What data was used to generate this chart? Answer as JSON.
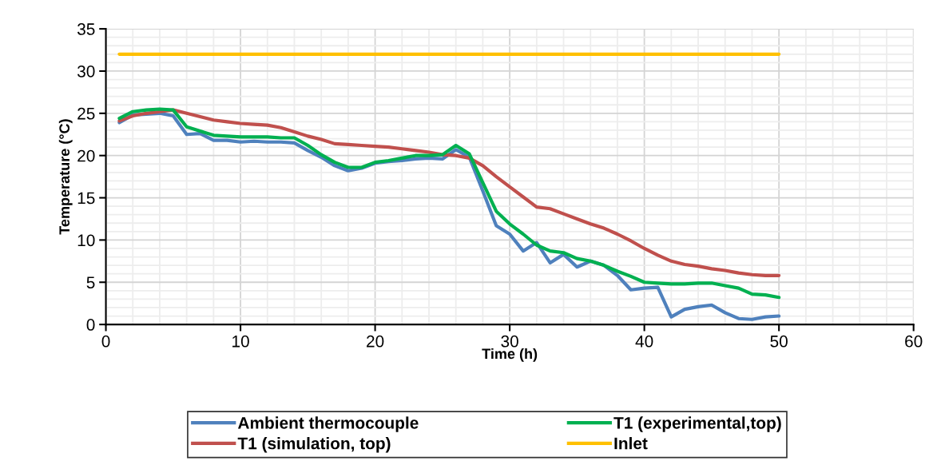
{
  "chart_data": {
    "type": "line",
    "xlabel": "Time (h)",
    "ylabel": "Temperature (°C)",
    "x": [
      1,
      2,
      3,
      4,
      5,
      6,
      7,
      8,
      9,
      10,
      11,
      12,
      13,
      14,
      15,
      16,
      17,
      18,
      19,
      20,
      21,
      22,
      23,
      24,
      25,
      26,
      27,
      28,
      29,
      30,
      31,
      32,
      33,
      34,
      35,
      36,
      37,
      38,
      39,
      40,
      41,
      42,
      43,
      44,
      45,
      46,
      47,
      48,
      49,
      50
    ],
    "series": [
      {
        "name": "Ambient thermocouple",
        "color": "#4f81bd",
        "values": [
          23.9,
          24.8,
          24.9,
          25.0,
          24.7,
          22.5,
          22.6,
          21.8,
          21.8,
          21.6,
          21.7,
          21.6,
          21.6,
          21.5,
          20.6,
          19.8,
          18.8,
          18.2,
          18.5,
          19.1,
          19.3,
          19.4,
          19.6,
          19.7,
          19.6,
          20.7,
          19.8,
          15.8,
          11.7,
          10.7,
          8.7,
          9.7,
          7.3,
          8.3,
          6.8,
          7.5,
          7.0,
          5.8,
          4.1,
          4.3,
          4.4,
          0.9,
          1.8,
          2.1,
          2.3,
          1.4,
          0.7,
          0.6,
          0.9,
          1.0
        ]
      },
      {
        "name": "T1 (simulation, top)",
        "color": "#c0504d",
        "values": [
          24.1,
          24.7,
          25.0,
          25.2,
          25.4,
          25.0,
          24.6,
          24.2,
          24.0,
          23.8,
          23.7,
          23.6,
          23.3,
          22.8,
          22.3,
          21.9,
          21.4,
          21.3,
          21.2,
          21.1,
          21.0,
          20.8,
          20.6,
          20.4,
          20.1,
          20.0,
          19.7,
          18.8,
          17.5,
          16.3,
          15.1,
          13.9,
          13.7,
          13.1,
          12.5,
          11.9,
          11.4,
          10.7,
          9.9,
          9.0,
          8.2,
          7.5,
          7.1,
          6.9,
          6.6,
          6.4,
          6.1,
          5.9,
          5.8,
          5.8
        ]
      },
      {
        "name": "T1 (experimental,top)",
        "color": "#00b050",
        "values": [
          24.4,
          25.2,
          25.4,
          25.5,
          25.4,
          23.4,
          22.9,
          22.4,
          22.3,
          22.2,
          22.2,
          22.2,
          22.1,
          22.1,
          21.2,
          20.1,
          19.2,
          18.6,
          18.6,
          19.2,
          19.4,
          19.7,
          20.0,
          20.0,
          20.1,
          21.2,
          20.2,
          16.8,
          13.4,
          11.9,
          10.7,
          9.4,
          8.7,
          8.5,
          7.8,
          7.5,
          7.0,
          6.3,
          5.7,
          5.0,
          4.9,
          4.8,
          4.8,
          4.9,
          4.9,
          4.6,
          4.3,
          3.6,
          3.5,
          3.2
        ]
      },
      {
        "name": "Inlet",
        "color": "#ffc000",
        "values": [
          32,
          32,
          32,
          32,
          32,
          32,
          32,
          32,
          32,
          32,
          32,
          32,
          32,
          32,
          32,
          32,
          32,
          32,
          32,
          32,
          32,
          32,
          32,
          32,
          32,
          32,
          32,
          32,
          32,
          32,
          32,
          32,
          32,
          32,
          32,
          32,
          32,
          32,
          32,
          32,
          32,
          32,
          32,
          32,
          32,
          32,
          32,
          32,
          32,
          32
        ]
      }
    ],
    "xlim": [
      0,
      60
    ],
    "xticks": [
      0,
      10,
      20,
      30,
      40,
      50,
      60
    ],
    "ylim": [
      0,
      35
    ],
    "yticks": [
      0,
      5,
      10,
      15,
      20,
      25,
      30,
      35
    ],
    "grid": true,
    "legend": "bottom",
    "marker": "none",
    "line_style": "solid"
  }
}
